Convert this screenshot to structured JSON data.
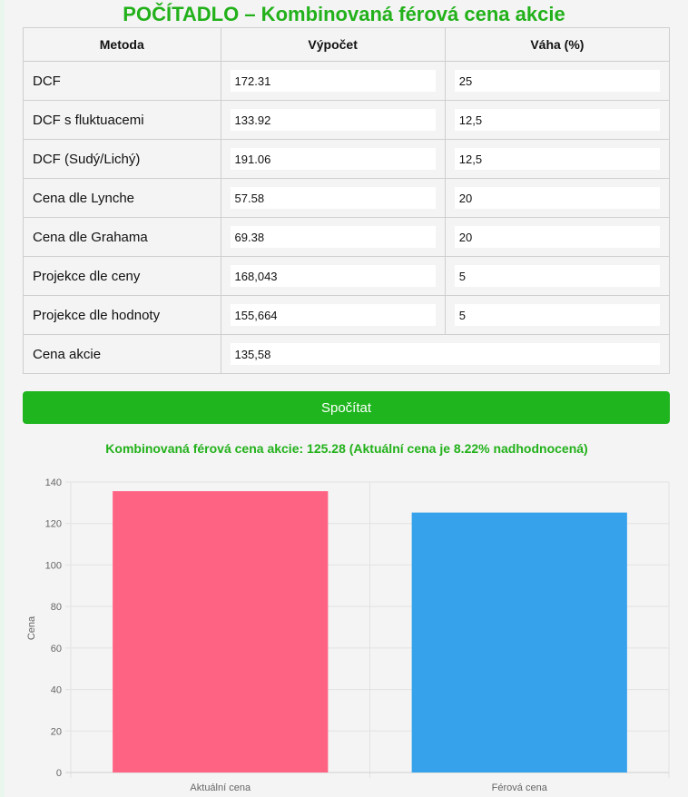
{
  "title": "POČÍTADLO – Kombinovaná férová cena akcie",
  "table": {
    "headers": [
      "Metoda",
      "Výpočet",
      "Váha (%)"
    ],
    "rows": [
      {
        "method": "DCF",
        "value": "172.31",
        "weight": "25"
      },
      {
        "method": "DCF s fluktuacemi",
        "value": "133.92",
        "weight": "12,5"
      },
      {
        "method": "DCF (Sudý/Lichý)",
        "value": "191.06",
        "weight": "12,5"
      },
      {
        "method": "Cena dle Lynche",
        "value": "57.58",
        "weight": "20"
      },
      {
        "method": "Cena dle Grahama",
        "value": "69.38",
        "weight": "20"
      },
      {
        "method": "Projekce dle ceny",
        "value": "168,043",
        "weight": "5"
      },
      {
        "method": "Projekce dle hodnoty",
        "value": "155,664",
        "weight": "5"
      }
    ],
    "price_row": {
      "label": "Cena akcie",
      "value": "135,58"
    }
  },
  "button_label": "Spočítat",
  "result_text": "Kombinovaná férová cena akcie: 125.28 (Aktuální cena je 8.22% nadhodnocená)",
  "colors": {
    "accent": "#22b11a",
    "button": "#1fb51e",
    "bar_current": "#ff6384",
    "bar_fair": "#36a2eb"
  },
  "chart_data": {
    "type": "bar",
    "categories": [
      "Aktuální cena",
      "Férová cena"
    ],
    "values": [
      135.58,
      125.28
    ],
    "ylabel": "Cena",
    "xlabel": "",
    "ylim": [
      0,
      140
    ],
    "yticks": [
      0,
      20,
      40,
      60,
      80,
      100,
      120,
      140
    ],
    "grid": true,
    "legend": "none",
    "bar_colors": [
      "#ff6384",
      "#36a2eb"
    ]
  }
}
